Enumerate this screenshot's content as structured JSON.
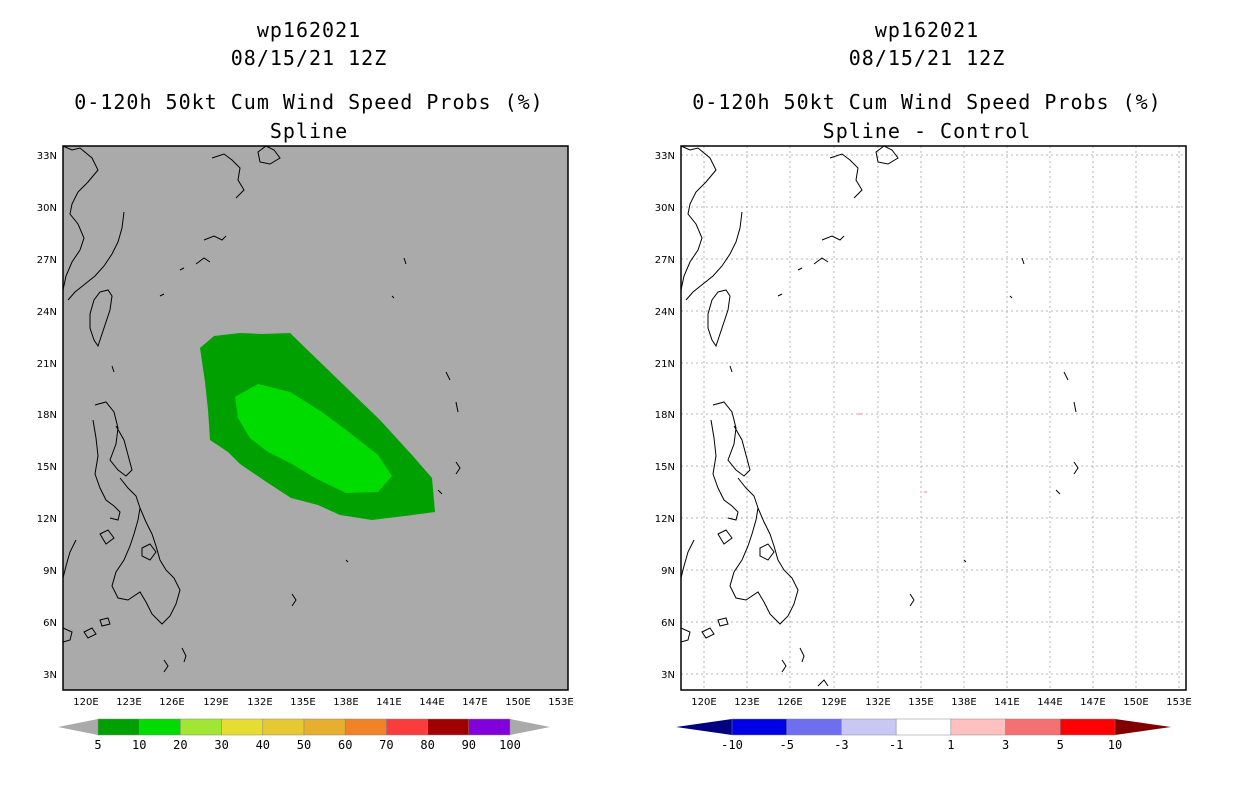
{
  "left": {
    "title_id": "wp162021",
    "title_date": "08/15/21 12Z",
    "title_product": "0-120h 50kt Cum Wind Speed Probs (%)",
    "title_sub": "Spline",
    "lat_labels": [
      "33N",
      "30N",
      "27N",
      "24N",
      "21N",
      "18N",
      "15N",
      "12N",
      "9N",
      "6N",
      "3N"
    ],
    "lon_labels": [
      "120E",
      "123E",
      "126E",
      "129E",
      "132E",
      "135E",
      "138E",
      "141E",
      "144E",
      "147E",
      "150E",
      "153E"
    ],
    "background_color": "#aaaaaa",
    "contours": [
      {
        "level": "5-10",
        "color": "#00a000"
      },
      {
        "level": "10-20",
        "color": "#00dc00"
      }
    ],
    "colorbar": {
      "labels": [
        "5",
        "10",
        "20",
        "30",
        "40",
        "50",
        "60",
        "70",
        "80",
        "90",
        "100"
      ],
      "colors": [
        "#00a000",
        "#00dc00",
        "#a0e632",
        "#e6dc32",
        "#e6c832",
        "#e6af2d",
        "#f08228",
        "#fa3c3c",
        "#a00000",
        "#8200dc"
      ],
      "end_color": "#aaaaaa"
    }
  },
  "right": {
    "title_id": "wp162021",
    "title_date": "08/15/21 12Z",
    "title_product": "0-120h 50kt Cum Wind Speed Probs (%)",
    "title_sub": "Spline - Control",
    "lat_labels": [
      "33N",
      "30N",
      "27N",
      "24N",
      "21N",
      "18N",
      "15N",
      "12N",
      "9N",
      "6N",
      "3N"
    ],
    "lon_labels": [
      "120E",
      "123E",
      "126E",
      "129E",
      "132E",
      "135E",
      "138E",
      "141E",
      "144E",
      "147E",
      "150E",
      "153E"
    ],
    "background_color": "#ffffff",
    "colorbar": {
      "labels": [
        "-10",
        "-5",
        "-3",
        "-1",
        "1",
        "3",
        "5",
        "10"
      ],
      "colors": [
        "#0000e6",
        "#6e6ef0",
        "#c8c8f5",
        "#ffffff",
        "#ffc0c0",
        "#f57070",
        "#ff0000"
      ],
      "low_end_color": "#000080",
      "high_end_color": "#800000"
    }
  }
}
